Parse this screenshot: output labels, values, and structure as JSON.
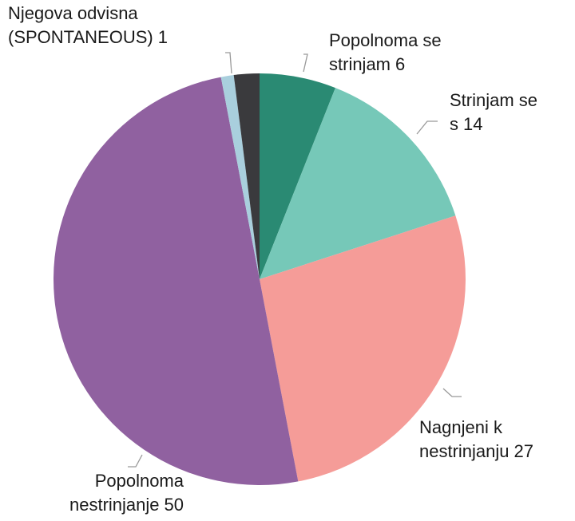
{
  "chart_data": {
    "type": "pie",
    "categories": [
      "Popolnoma se strinjam",
      "Strinjam se s",
      "Nagnjeni k nestrinjanju",
      "Popolnoma nestrinjanje",
      "Njegova odvisna (SPONTANEOUS)",
      null
    ],
    "values": [
      6,
      14,
      27,
      50,
      1,
      2
    ],
    "colors": [
      "#2a8a73",
      "#76c8b8",
      "#f59c98",
      "#9061a0",
      "#a9cfdd",
      "#3a3a3d"
    ]
  }
}
